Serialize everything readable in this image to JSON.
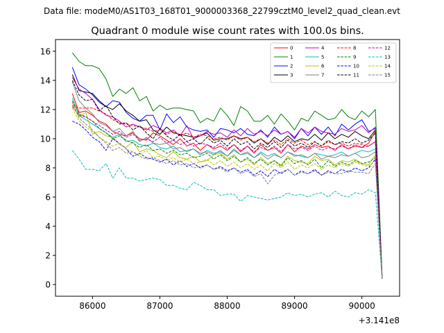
{
  "chart_data": {
    "type": "line",
    "suptitle": "Data file: modeM0/AS1T03_168T01_9000003368_22799cztM0_level2_quad_clean.evt",
    "title": "Quadrant 0 module wise count rates with 100.0s bins.",
    "xlabel": "",
    "ylabel": "",
    "x_offset_label": "+3.141e8",
    "xlim": [
      85450,
      90560
    ],
    "ylim": [
      -0.8,
      16.8
    ],
    "xticks": [
      86000,
      87000,
      88000,
      89000,
      90000
    ],
    "xtick_labels": [
      "86000",
      "87000",
      "88000",
      "89000",
      "90000"
    ],
    "yticks": [
      0,
      2,
      4,
      6,
      8,
      10,
      12,
      14,
      16
    ],
    "ytick_labels": [
      "0",
      "2",
      "4",
      "6",
      "8",
      "10",
      "12",
      "14",
      "16"
    ],
    "x": [
      85700,
      85800,
      85900,
      86000,
      86100,
      86200,
      86300,
      86400,
      86500,
      86600,
      86700,
      86800,
      86900,
      87000,
      87100,
      87200,
      87300,
      87400,
      87500,
      87600,
      87700,
      87800,
      87900,
      88000,
      88100,
      88200,
      88300,
      88400,
      88500,
      88600,
      88700,
      88800,
      88900,
      89000,
      89100,
      89200,
      89300,
      89400,
      89500,
      89600,
      89700,
      89800,
      89900,
      90000,
      90100,
      90200,
      90300
    ],
    "series": [
      {
        "name": "0",
        "color": "#ff0000",
        "dash": "solid",
        "values": [
          13.1,
          11.8,
          11.9,
          11.6,
          11.2,
          11.0,
          10.5,
          10.3,
          10.2,
          10.4,
          10.0,
          9.9,
          10.4,
          10.2,
          9.9,
          9.6,
          10.0,
          9.5,
          9.7,
          9.2,
          9.6,
          9.3,
          9.5,
          9.2,
          9.6,
          9.1,
          9.5,
          9.0,
          9.6,
          9.2,
          9.4,
          9.0,
          9.6,
          9.1,
          9.5,
          9.3,
          9.6,
          9.4,
          9.5,
          9.2,
          9.6,
          9.3,
          9.5,
          9.4,
          9.7,
          10.5,
          0.5
        ]
      },
      {
        "name": "1",
        "color": "#008000",
        "dash": "solid",
        "values": [
          15.9,
          15.3,
          15.0,
          15.0,
          14.8,
          14.1,
          12.9,
          13.4,
          13.1,
          13.5,
          12.6,
          12.9,
          11.9,
          12.3,
          12.0,
          12.1,
          12.1,
          12.0,
          11.9,
          11.1,
          11.4,
          11.2,
          12.1,
          11.6,
          10.9,
          12.2,
          11.9,
          11.2,
          11.2,
          11.6,
          11.0,
          11.7,
          11.2,
          10.6,
          11.4,
          11.2,
          11.9,
          11.6,
          11.3,
          11.4,
          12.0,
          11.5,
          11.3,
          11.9,
          11.5,
          12.0,
          0.6
        ]
      },
      {
        "name": "2",
        "color": "#0000ff",
        "dash": "solid",
        "values": [
          14.9,
          13.7,
          13.4,
          13.0,
          12.5,
          12.2,
          12.6,
          12.5,
          11.8,
          11.4,
          11.2,
          11.6,
          11.6,
          10.6,
          11.7,
          11.1,
          11.5,
          10.8,
          10.6,
          10.5,
          10.6,
          10.1,
          10.7,
          10.6,
          10.4,
          10.7,
          10.3,
          10.2,
          10.6,
          10.1,
          10.8,
          10.3,
          10.5,
          10.0,
          10.7,
          10.2,
          10.8,
          10.3,
          10.8,
          10.2,
          11.0,
          10.6,
          11.0,
          11.3,
          10.5,
          10.7,
          0.4
        ]
      },
      {
        "name": "3",
        "color": "#000000",
        "dash": "solid",
        "values": [
          14.4,
          13.3,
          13.2,
          13.1,
          12.6,
          12.2,
          12.0,
          12.4,
          11.9,
          11.6,
          11.2,
          11.3,
          10.6,
          10.3,
          10.8,
          10.4,
          10.3,
          10.2,
          10.1,
          10.2,
          10.4,
          9.9,
          10.0,
          10.0,
          10.2,
          10.0,
          10.1,
          9.7,
          10.0,
          9.6,
          10.1,
          9.8,
          10.2,
          9.8,
          10.0,
          9.9,
          10.3,
          9.9,
          10.4,
          10.0,
          10.3,
          10.1,
          10.5,
          10.2,
          10.0,
          10.6,
          0.5
        ]
      },
      {
        "name": "4",
        "color": "#bf00bf",
        "dash": "solid",
        "values": [
          14.2,
          13.4,
          13.1,
          12.7,
          12.0,
          11.6,
          11.5,
          11.2,
          10.8,
          11.0,
          10.8,
          10.6,
          10.9,
          10.7,
          10.4,
          10.6,
          10.2,
          10.9,
          10.0,
          10.2,
          10.5,
          10.3,
          10.4,
          10.1,
          10.6,
          10.2,
          10.7,
          10.3,
          10.5,
          10.2,
          10.6,
          10.3,
          10.5,
          10.1,
          10.7,
          10.4,
          10.8,
          10.5,
          10.4,
          10.3,
          10.7,
          10.5,
          10.6,
          10.9,
          10.4,
          10.8,
          0.4
        ]
      },
      {
        "name": "5",
        "color": "#00bfbf",
        "dash": "solid",
        "values": [
          12.8,
          11.6,
          11.3,
          11.0,
          10.7,
          10.4,
          10.1,
          10.3,
          9.8,
          9.9,
          9.6,
          9.5,
          9.7,
          9.4,
          9.3,
          9.5,
          9.1,
          9.2,
          9.3,
          8.9,
          9.2,
          9.0,
          9.1,
          8.8,
          9.2,
          8.9,
          9.0,
          8.7,
          9.1,
          8.8,
          9.0,
          8.7,
          9.1,
          8.9,
          8.8,
          8.7,
          9.0,
          8.9,
          8.8,
          8.9,
          9.1,
          8.8,
          9.0,
          9.2,
          9.1,
          9.3,
          0.4
        ]
      },
      {
        "name": "6",
        "color": "#bfbf00",
        "dash": "solid",
        "values": [
          12.3,
          11.5,
          11.8,
          10.3,
          10.5,
          10.2,
          10.1,
          9.6,
          9.4,
          9.8,
          9.1,
          9.3,
          9.2,
          8.9,
          8.7,
          9.1,
          8.7,
          8.6,
          8.8,
          8.4,
          8.5,
          8.9,
          9.0,
          8.6,
          8.9,
          8.4,
          8.6,
          8.2,
          8.7,
          8.3,
          8.5,
          8.2,
          8.8,
          8.5,
          8.4,
          8.3,
          8.8,
          8.5,
          8.6,
          8.2,
          8.5,
          8.4,
          8.6,
          8.3,
          8.2,
          8.9,
          0.4
        ]
      },
      {
        "name": "7",
        "color": "#808080",
        "dash": "solid",
        "values": [
          13.9,
          12.6,
          12.1,
          11.7,
          11.1,
          10.9,
          10.5,
          10.7,
          10.2,
          10.5,
          9.8,
          10.1,
          9.7,
          9.6,
          9.7,
          9.3,
          9.4,
          9.1,
          9.3,
          9.0,
          9.1,
          8.9,
          9.2,
          8.8,
          9.3,
          8.9,
          9.1,
          8.7,
          9.0,
          8.6,
          8.9,
          8.7,
          9.1,
          8.8,
          8.9,
          8.7,
          9.0,
          8.6,
          8.8,
          8.7,
          8.9,
          8.8,
          9.0,
          8.7,
          8.8,
          9.1,
          0.4
        ]
      },
      {
        "name": "8",
        "color": "#ff0000",
        "dash": "dashed",
        "values": [
          12.3,
          12.1,
          12.1,
          12.1,
          11.9,
          11.7,
          11.3,
          11.1,
          11.0,
          10.9,
          10.8,
          10.7,
          10.5,
          10.6,
          10.3,
          10.5,
          10.2,
          10.4,
          10.1,
          10.3,
          10.2,
          10.0,
          10.1,
          9.9,
          10.2,
          9.9,
          10.1,
          9.8,
          10.0,
          9.7,
          9.9,
          9.6,
          10.0,
          9.7,
          9.9,
          9.6,
          9.8,
          9.5,
          9.8,
          9.6,
          9.7,
          9.5,
          9.7,
          9.6,
          9.5,
          9.8,
          0.4
        ]
      },
      {
        "name": "9",
        "color": "#008000",
        "dash": "dashed",
        "values": [
          12.6,
          11.7,
          11.5,
          11.2,
          10.7,
          10.4,
          10.0,
          10.2,
          9.9,
          9.7,
          9.4,
          9.6,
          9.2,
          9.3,
          9.0,
          9.2,
          8.9,
          9.0,
          8.7,
          8.8,
          9.0,
          8.6,
          8.9,
          8.5,
          8.8,
          8.4,
          8.7,
          8.3,
          8.6,
          8.2,
          8.5,
          8.1,
          8.7,
          8.3,
          8.5,
          8.2,
          8.6,
          8.0,
          8.5,
          8.1,
          8.4,
          8.2,
          8.5,
          8.3,
          8.4,
          8.7,
          0.4
        ]
      },
      {
        "name": "10",
        "color": "#0000ff",
        "dash": "dashed",
        "values": [
          11.2,
          11.0,
          10.6,
          10.1,
          9.8,
          9.2,
          10.0,
          9.7,
          9.3,
          8.8,
          9.0,
          8.7,
          8.6,
          8.4,
          8.6,
          8.2,
          8.5,
          8.1,
          8.3,
          8.0,
          8.2,
          7.9,
          8.1,
          7.8,
          8.0,
          7.7,
          7.9,
          7.5,
          7.8,
          7.4,
          7.9,
          7.6,
          7.9,
          7.5,
          7.8,
          7.6,
          7.9,
          7.5,
          7.8,
          7.6,
          7.9,
          7.7,
          8.0,
          7.8,
          8.0,
          8.6,
          0.4
        ]
      },
      {
        "name": "11",
        "color": "#000000",
        "dash": "dashed",
        "values": [
          14.0,
          13.0,
          12.6,
          12.7,
          11.9,
          12.3,
          11.5,
          11.0,
          11.1,
          10.6,
          10.9,
          10.4,
          10.0,
          10.7,
          10.2,
          9.9,
          10.3,
          9.8,
          10.0,
          9.6,
          10.1,
          9.7,
          9.9,
          9.5,
          10.0,
          9.6,
          9.8,
          9.3,
          9.7,
          9.4,
          9.8,
          9.4,
          9.9,
          9.5,
          9.7,
          9.4,
          9.8,
          9.5,
          9.9,
          9.6,
          9.8,
          9.7,
          10.0,
          9.7,
          9.9,
          10.4,
          0.4
        ]
      },
      {
        "name": "12",
        "color": "#bf00bf",
        "dash": "dashed",
        "values": [
          12.2,
          11.6,
          11.5,
          11.2,
          10.9,
          10.6,
          10.3,
          10.5,
          10.1,
          10.3,
          9.9,
          10.0,
          9.8,
          10.1,
          9.7,
          9.9,
          9.6,
          9.8,
          9.5,
          9.7,
          9.6,
          9.4,
          9.7,
          9.3,
          9.6,
          9.2,
          9.5,
          9.1,
          9.4,
          9.2,
          9.5,
          9.1,
          9.6,
          9.3,
          9.4,
          9.2,
          9.5,
          9.2,
          9.4,
          9.3,
          9.5,
          9.3,
          9.6,
          9.4,
          9.5,
          9.8,
          0.4
        ]
      },
      {
        "name": "13",
        "color": "#00bfbf",
        "dash": "dashed",
        "values": [
          9.2,
          8.6,
          7.9,
          7.9,
          7.8,
          8.3,
          7.3,
          8.0,
          7.3,
          7.3,
          7.1,
          7.2,
          7.3,
          7.2,
          6.8,
          6.8,
          6.6,
          6.5,
          7.0,
          6.8,
          6.5,
          6.5,
          6.1,
          6.2,
          6.2,
          5.7,
          6.1,
          6.0,
          5.9,
          5.8,
          5.9,
          6.0,
          6.3,
          6.1,
          6.2,
          6.0,
          6.2,
          6.3,
          6.0,
          6.4,
          6.1,
          6.0,
          6.3,
          6.2,
          6.5,
          6.3,
          0.4
        ]
      },
      {
        "name": "14",
        "color": "#bfbf00",
        "dash": "dashed",
        "values": [
          12.1,
          11.2,
          10.8,
          10.5,
          10.1,
          9.8,
          9.5,
          9.7,
          9.3,
          9.1,
          8.9,
          9.2,
          8.7,
          8.8,
          8.5,
          8.7,
          8.4,
          8.6,
          8.3,
          8.4,
          8.6,
          8.2,
          8.5,
          8.1,
          8.4,
          8.0,
          8.3,
          7.9,
          8.2,
          7.8,
          8.3,
          8.0,
          8.4,
          7.9,
          8.2,
          8.0,
          8.3,
          7.9,
          8.2,
          8.0,
          8.3,
          8.1,
          8.4,
          8.2,
          8.1,
          8.5,
          0.4
        ]
      },
      {
        "name": "15",
        "color": "#808080",
        "dash": "dashed",
        "values": [
          12.5,
          11.4,
          11.0,
          10.6,
          10.1,
          9.7,
          9.2,
          9.4,
          9.0,
          9.1,
          8.8,
          8.6,
          8.7,
          8.5,
          8.3,
          8.5,
          8.2,
          8.3,
          8.0,
          8.1,
          8.2,
          7.9,
          8.0,
          7.7,
          8.0,
          7.6,
          7.8,
          7.4,
          7.6,
          6.9,
          7.5,
          7.7,
          7.9,
          7.5,
          7.7,
          7.6,
          7.8,
          7.5,
          7.7,
          7.6,
          7.6,
          7.8,
          7.7,
          7.7,
          7.6,
          8.3,
          0.4
        ]
      }
    ]
  }
}
